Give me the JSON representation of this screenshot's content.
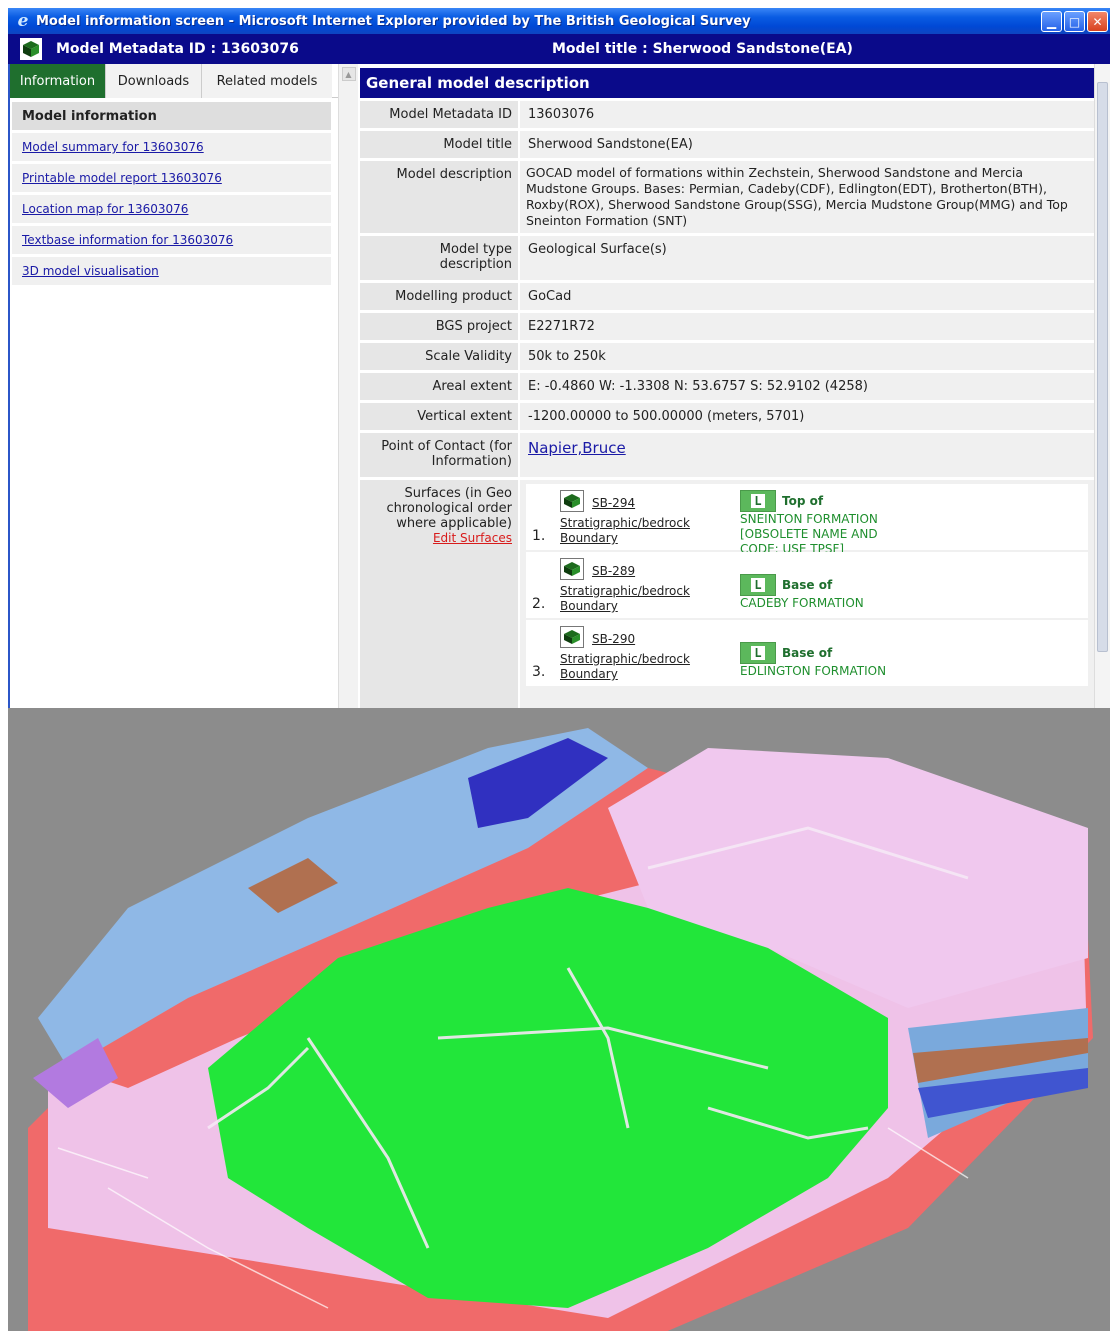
{
  "window": {
    "title": "Model information screen - Microsoft Internet Explorer provided by The British Geological Survey"
  },
  "model_bar": {
    "id_text": "Model Metadata ID : 13603076",
    "title_text": "Model title : Sherwood Sandstone(EA)"
  },
  "tabs": [
    {
      "label": "Information",
      "active": true
    },
    {
      "label": "Downloads",
      "active": false
    },
    {
      "label": "Related models",
      "active": false
    }
  ],
  "nav": {
    "heading": "Model information",
    "links": [
      "Model summary for 13603076",
      "Printable model report 13603076",
      "Location map for 13603076",
      "Textbase information for 13603076",
      "3D model visualisation"
    ]
  },
  "section": {
    "title": "General model description"
  },
  "rows": [
    {
      "label": "Model Metadata ID",
      "value": "13603076"
    },
    {
      "label": "Model title",
      "value": "Sherwood Sandstone(EA)"
    },
    {
      "label": "Model description",
      "value": "GOCAD model of formations within Zechstein, Sherwood Sandstone and Mercia Mudstone Groups. Bases: Permian, Cadeby(CDF), Edlington(EDT), Brotherton(BTH), Roxby(ROX), Sherwood Sandstone Group(SSG), Mercia Mudstone Group(MMG) and Top Sneinton Formation (SNT)"
    },
    {
      "label": "Model type description",
      "value": "Geological Surface(s)"
    },
    {
      "label": "Modelling product",
      "value": "GoCad"
    },
    {
      "label": "BGS project",
      "value": "E2271R72"
    },
    {
      "label": "Scale Validity",
      "value": "50k to 250k"
    },
    {
      "label": "Areal extent",
      "value": "E: -0.4860 W: -1.3308 N: 53.6757 S: 52.9102 (4258)"
    },
    {
      "label": "Vertical extent",
      "value": "-1200.00000 to 500.00000 (meters, 5701)"
    },
    {
      "label": "Point of Contact (for Information)",
      "value": "Napier,Bruce"
    }
  ],
  "surfaces": {
    "label": "Surfaces (in Geo chronological order where applicable)",
    "edit_label": "Edit Surfaces",
    "items": [
      {
        "num": "1.",
        "code": "SB-294",
        "type": "Stratigraphic/bedrock Boundary",
        "badge": "L",
        "position": "Top of",
        "name": "SNEINTON FORMATION [OBSOLETE NAME AND CODE: USE TPSF]"
      },
      {
        "num": "2.",
        "code": "SB-289",
        "type": "Stratigraphic/bedrock Boundary",
        "badge": "L",
        "position": "Base of",
        "name": "CADEBY FORMATION"
      },
      {
        "num": "3.",
        "code": "SB-290",
        "type": "Stratigraphic/bedrock Boundary",
        "badge": "L",
        "position": "Base of",
        "name": "EDLINGTON FORMATION"
      }
    ]
  },
  "colors": {
    "navy_bar": "#0a0a8a",
    "tab_active": "#1f6f2e",
    "green_surface": "#22e63a",
    "red_surface": "#f06a6a",
    "pink_surface": "#f0c8ee",
    "blue_surface": "#8fb8e6",
    "background_3d": "#8c8c8c"
  }
}
